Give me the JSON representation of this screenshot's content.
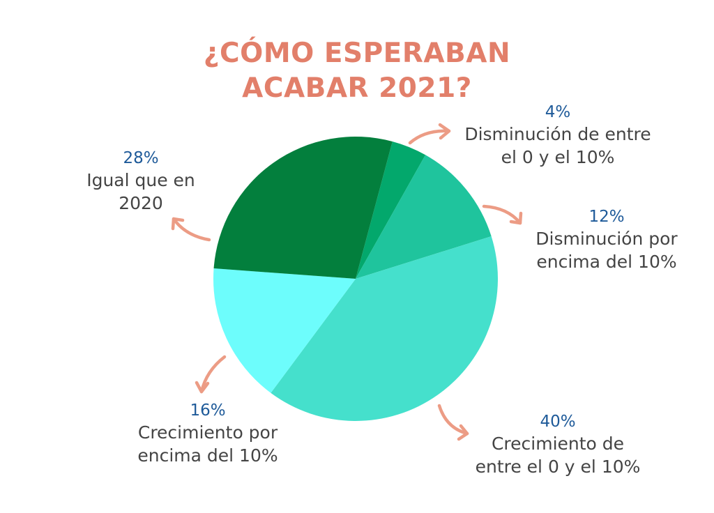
{
  "chart_data": {
    "type": "pie",
    "title_lines": [
      "¿CÓMO ESPERABAN",
      "ACABAR 2021?"
    ],
    "slices": [
      {
        "pct_label": "4%",
        "value": 4,
        "desc_lines": [
          "Disminución de entre",
          "el 0 y el 10%"
        ],
        "color": "#03a86c"
      },
      {
        "pct_label": "12%",
        "value": 12,
        "desc_lines": [
          "Disminución por",
          "encima del 10%"
        ],
        "color": "#1fc49d"
      },
      {
        "pct_label": "40%",
        "value": 40,
        "desc_lines": [
          "Crecimiento de",
          "entre el 0 y el 10%"
        ],
        "color": "#45e0cc"
      },
      {
        "pct_label": "16%",
        "value": 16,
        "desc_lines": [
          "Crecimiento por",
          "encima del 10%"
        ],
        "color": "#6dfdfc"
      },
      {
        "pct_label": "28%",
        "value": 28,
        "desc_lines": [
          "Igual que en",
          "2020"
        ],
        "color": "#037f3d"
      }
    ]
  },
  "colors": {
    "title": "#e27f6a",
    "arrows": "#ec9c85",
    "percent_text": "#1e5a99",
    "label_text": "#444444"
  }
}
